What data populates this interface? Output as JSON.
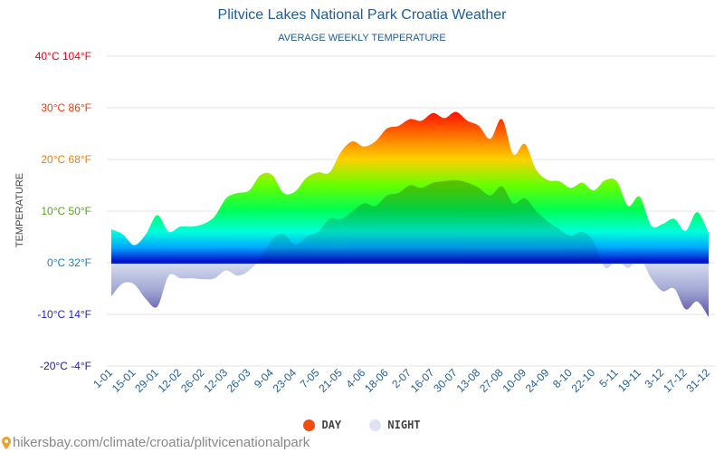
{
  "chart_data": {
    "type": "area",
    "title": "Plitvice Lakes National Park Croatia Weather",
    "subtitle": "AVERAGE WEEKLY TEMPERATURE",
    "ylabel": "TEMPERATURE",
    "ylim": [
      -20,
      40
    ],
    "y_ticks": [
      {
        "value": 40,
        "label": "40°C 104°F",
        "color": "#e6001a"
      },
      {
        "value": 30,
        "label": "30°C 86°F",
        "color": "#e83c0c"
      },
      {
        "value": 20,
        "label": "20°C 68°F",
        "color": "#e7800f"
      },
      {
        "value": 10,
        "label": "10°C 50°F",
        "color": "#56a51a"
      },
      {
        "value": 0,
        "label": "0°C 32°F",
        "color": "#1f7fc0"
      },
      {
        "value": -10,
        "label": "-10°C 14°F",
        "color": "#2222cc"
      },
      {
        "value": -20,
        "label": "-20°C -4°F",
        "color": "#1a1aa0"
      }
    ],
    "x_labels": [
      "1-01",
      "15-01",
      "29-01",
      "12-02",
      "26-02",
      "12-03",
      "26-03",
      "9-04",
      "23-04",
      "7-05",
      "21-05",
      "4-06",
      "18-06",
      "2-07",
      "16-07",
      "30-07",
      "13-08",
      "27-08",
      "10-09",
      "24-09",
      "8-10",
      "22-10",
      "5-11",
      "19-11",
      "3-12",
      "17-12",
      "31-12"
    ],
    "series": [
      {
        "name": "DAY",
        "values": [
          6.5,
          5.5,
          3.4,
          5.5,
          9.2,
          6.0,
          7.0,
          7.0,
          7.5,
          9.0,
          12.5,
          13.5,
          14.0,
          17.0,
          17.0,
          13.5,
          13.8,
          16.5,
          17.5,
          17.5,
          21.5,
          23.5,
          22.5,
          23.5,
          26.0,
          26.5,
          27.8,
          27.5,
          29.0,
          28.0,
          29.2,
          27.5,
          26.5,
          24.0,
          27.8,
          21.0,
          23.0,
          18.0,
          16.0,
          15.8,
          14.5,
          15.5,
          14.0,
          16.0,
          15.8,
          11.0,
          12.8,
          7.2,
          7.5,
          8.5,
          6.2,
          9.8,
          5.8
        ]
      },
      {
        "name": "NIGHT",
        "values": [
          -6.5,
          -4.0,
          -4.2,
          -7.0,
          -8.5,
          -2.5,
          -3.0,
          -3.0,
          -3.2,
          -3.0,
          -1.5,
          -2.5,
          -1.5,
          1.0,
          4.5,
          5.5,
          3.5,
          5.0,
          6.0,
          8.5,
          8.5,
          10.0,
          11.5,
          11.0,
          13.0,
          13.5,
          15.0,
          14.5,
          15.5,
          15.8,
          16.0,
          15.5,
          14.5,
          13.0,
          14.8,
          11.5,
          12.5,
          10.0,
          8.0,
          6.5,
          5.2,
          6.0,
          4.0,
          -1.0,
          0.5,
          -1.0,
          0.8,
          -3.0,
          -5.5,
          -5.0,
          -9.0,
          -7.5,
          -10.5
        ]
      }
    ],
    "legend": [
      {
        "name": "DAY",
        "color": "#f04e10"
      },
      {
        "name": "NIGHT",
        "color": "#dde3f0"
      }
    ]
  },
  "source": "hikersbay.com/climate/croatia/plitvicenationalpark",
  "colors": {
    "title": "#1f5c99",
    "grid": "#e6e6e6",
    "xlabel": "#1f5c99",
    "ylabel_axis": "#444444"
  }
}
